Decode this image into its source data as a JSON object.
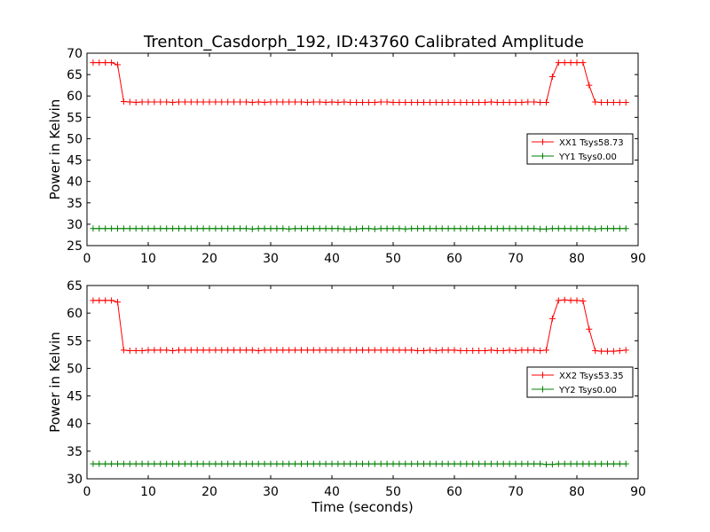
{
  "title": "Trenton_Casdorph_192, ID:43760 Calibrated Amplitude",
  "chart_data": [
    {
      "type": "line",
      "xlabel": "",
      "ylabel": "Power in Kelvin",
      "xlim": [
        0,
        90
      ],
      "ylim": [
        25,
        70
      ],
      "xticks": [
        0,
        10,
        20,
        30,
        40,
        50,
        60,
        70,
        80,
        90
      ],
      "yticks": [
        25,
        30,
        35,
        40,
        45,
        50,
        55,
        60,
        65,
        70
      ],
      "legend_position": "right",
      "x": [
        1,
        2,
        3,
        4,
        5,
        6,
        7,
        8,
        9,
        10,
        11,
        12,
        13,
        14,
        15,
        16,
        17,
        18,
        19,
        20,
        21,
        22,
        23,
        24,
        25,
        26,
        27,
        28,
        29,
        30,
        31,
        32,
        33,
        34,
        35,
        36,
        37,
        38,
        39,
        40,
        41,
        42,
        43,
        44,
        45,
        46,
        47,
        48,
        49,
        50,
        51,
        52,
        53,
        54,
        55,
        56,
        57,
        58,
        59,
        60,
        61,
        62,
        63,
        64,
        65,
        66,
        67,
        68,
        69,
        70,
        71,
        72,
        73,
        74,
        75,
        76,
        77,
        78,
        79,
        80,
        81,
        82,
        83,
        84,
        85,
        86,
        87,
        88
      ],
      "series": [
        {
          "name": "XX1 Tsys58.73",
          "color": "#ff0000",
          "values": [
            67.8,
            67.8,
            67.8,
            67.8,
            67.3,
            58.7,
            58.6,
            58.5,
            58.6,
            58.6,
            58.6,
            58.6,
            58.6,
            58.5,
            58.6,
            58.6,
            58.6,
            58.6,
            58.6,
            58.6,
            58.6,
            58.6,
            58.6,
            58.6,
            58.6,
            58.6,
            58.5,
            58.6,
            58.5,
            58.6,
            58.6,
            58.6,
            58.6,
            58.6,
            58.6,
            58.5,
            58.6,
            58.6,
            58.5,
            58.6,
            58.5,
            58.6,
            58.5,
            58.5,
            58.5,
            58.5,
            58.5,
            58.6,
            58.6,
            58.5,
            58.5,
            58.5,
            58.5,
            58.5,
            58.5,
            58.5,
            58.5,
            58.5,
            58.5,
            58.5,
            58.5,
            58.5,
            58.5,
            58.5,
            58.5,
            58.6,
            58.5,
            58.5,
            58.5,
            58.5,
            58.5,
            58.6,
            58.6,
            58.5,
            58.5,
            64.5,
            67.8,
            67.8,
            67.8,
            67.8,
            67.8,
            62.5,
            58.6,
            58.5,
            58.5,
            58.5,
            58.5,
            58.5
          ]
        },
        {
          "name": "YY1 Tsys0.00",
          "color": "#008000",
          "values": [
            29.0,
            29.0,
            29.0,
            29.0,
            29.0,
            29.0,
            29.0,
            29.0,
            29.0,
            29.0,
            29.0,
            29.0,
            29.0,
            29.0,
            29.0,
            29.0,
            29.0,
            29.0,
            29.0,
            29.0,
            29.0,
            29.0,
            29.0,
            29.0,
            29.0,
            29.0,
            28.9,
            29.0,
            29.0,
            29.0,
            29.0,
            29.0,
            28.9,
            29.0,
            29.0,
            29.0,
            29.0,
            29.0,
            29.0,
            29.0,
            29.0,
            28.9,
            28.9,
            28.9,
            29.0,
            29.0,
            28.9,
            29.0,
            29.0,
            29.0,
            29.0,
            28.9,
            29.0,
            29.0,
            29.0,
            29.0,
            29.0,
            29.0,
            29.0,
            29.0,
            29.0,
            29.0,
            29.0,
            29.0,
            29.0,
            29.0,
            29.0,
            29.0,
            29.0,
            29.0,
            29.0,
            29.0,
            29.0,
            28.9,
            28.9,
            29.0,
            29.0,
            29.0,
            29.0,
            29.0,
            29.0,
            29.0,
            28.9,
            29.0,
            29.0,
            29.0,
            29.0,
            29.0
          ]
        }
      ]
    },
    {
      "type": "line",
      "xlabel": "Time (seconds)",
      "ylabel": "Power in Kelvin",
      "xlim": [
        0,
        90
      ],
      "ylim": [
        30,
        65
      ],
      "xticks": [
        0,
        10,
        20,
        30,
        40,
        50,
        60,
        70,
        80,
        90
      ],
      "yticks": [
        30,
        35,
        40,
        45,
        50,
        55,
        60,
        65
      ],
      "legend_position": "right",
      "x": [
        1,
        2,
        3,
        4,
        5,
        6,
        7,
        8,
        9,
        10,
        11,
        12,
        13,
        14,
        15,
        16,
        17,
        18,
        19,
        20,
        21,
        22,
        23,
        24,
        25,
        26,
        27,
        28,
        29,
        30,
        31,
        32,
        33,
        34,
        35,
        36,
        37,
        38,
        39,
        40,
        41,
        42,
        43,
        44,
        45,
        46,
        47,
        48,
        49,
        50,
        51,
        52,
        53,
        54,
        55,
        56,
        57,
        58,
        59,
        60,
        61,
        62,
        63,
        64,
        65,
        66,
        67,
        68,
        69,
        70,
        71,
        72,
        73,
        74,
        75,
        76,
        77,
        78,
        79,
        80,
        81,
        82,
        83,
        84,
        85,
        86,
        87,
        88
      ],
      "series": [
        {
          "name": "XX2 Tsys53.35",
          "color": "#ff0000",
          "values": [
            62.3,
            62.3,
            62.3,
            62.3,
            62.0,
            53.3,
            53.2,
            53.2,
            53.2,
            53.3,
            53.3,
            53.3,
            53.3,
            53.2,
            53.3,
            53.3,
            53.3,
            53.3,
            53.3,
            53.3,
            53.3,
            53.3,
            53.3,
            53.3,
            53.3,
            53.3,
            53.3,
            53.2,
            53.3,
            53.3,
            53.3,
            53.3,
            53.3,
            53.3,
            53.3,
            53.3,
            53.3,
            53.3,
            53.3,
            53.3,
            53.3,
            53.3,
            53.3,
            53.3,
            53.3,
            53.3,
            53.3,
            53.3,
            53.3,
            53.3,
            53.3,
            53.3,
            53.3,
            53.2,
            53.2,
            53.3,
            53.2,
            53.3,
            53.3,
            53.3,
            53.2,
            53.2,
            53.2,
            53.2,
            53.2,
            53.3,
            53.2,
            53.2,
            53.3,
            53.2,
            53.3,
            53.3,
            53.3,
            53.2,
            53.3,
            59.0,
            62.3,
            62.4,
            62.3,
            62.3,
            62.2,
            57.1,
            53.2,
            53.1,
            53.1,
            53.1,
            53.2,
            53.3
          ]
        },
        {
          "name": "YY2 Tsys0.00",
          "color": "#008000",
          "values": [
            32.7,
            32.7,
            32.7,
            32.7,
            32.7,
            32.7,
            32.7,
            32.7,
            32.7,
            32.7,
            32.7,
            32.7,
            32.7,
            32.7,
            32.7,
            32.7,
            32.7,
            32.7,
            32.7,
            32.7,
            32.7,
            32.7,
            32.7,
            32.7,
            32.7,
            32.7,
            32.7,
            32.7,
            32.7,
            32.7,
            32.7,
            32.7,
            32.7,
            32.7,
            32.7,
            32.7,
            32.7,
            32.7,
            32.7,
            32.7,
            32.7,
            32.7,
            32.7,
            32.7,
            32.7,
            32.7,
            32.7,
            32.7,
            32.7,
            32.7,
            32.7,
            32.7,
            32.7,
            32.7,
            32.7,
            32.7,
            32.7,
            32.7,
            32.7,
            32.7,
            32.7,
            32.7,
            32.7,
            32.7,
            32.7,
            32.7,
            32.7,
            32.7,
            32.7,
            32.7,
            32.7,
            32.7,
            32.7,
            32.7,
            32.6,
            32.6,
            32.7,
            32.7,
            32.7,
            32.7,
            32.7,
            32.7,
            32.7,
            32.7,
            32.7,
            32.7,
            32.7,
            32.7
          ]
        }
      ]
    }
  ]
}
